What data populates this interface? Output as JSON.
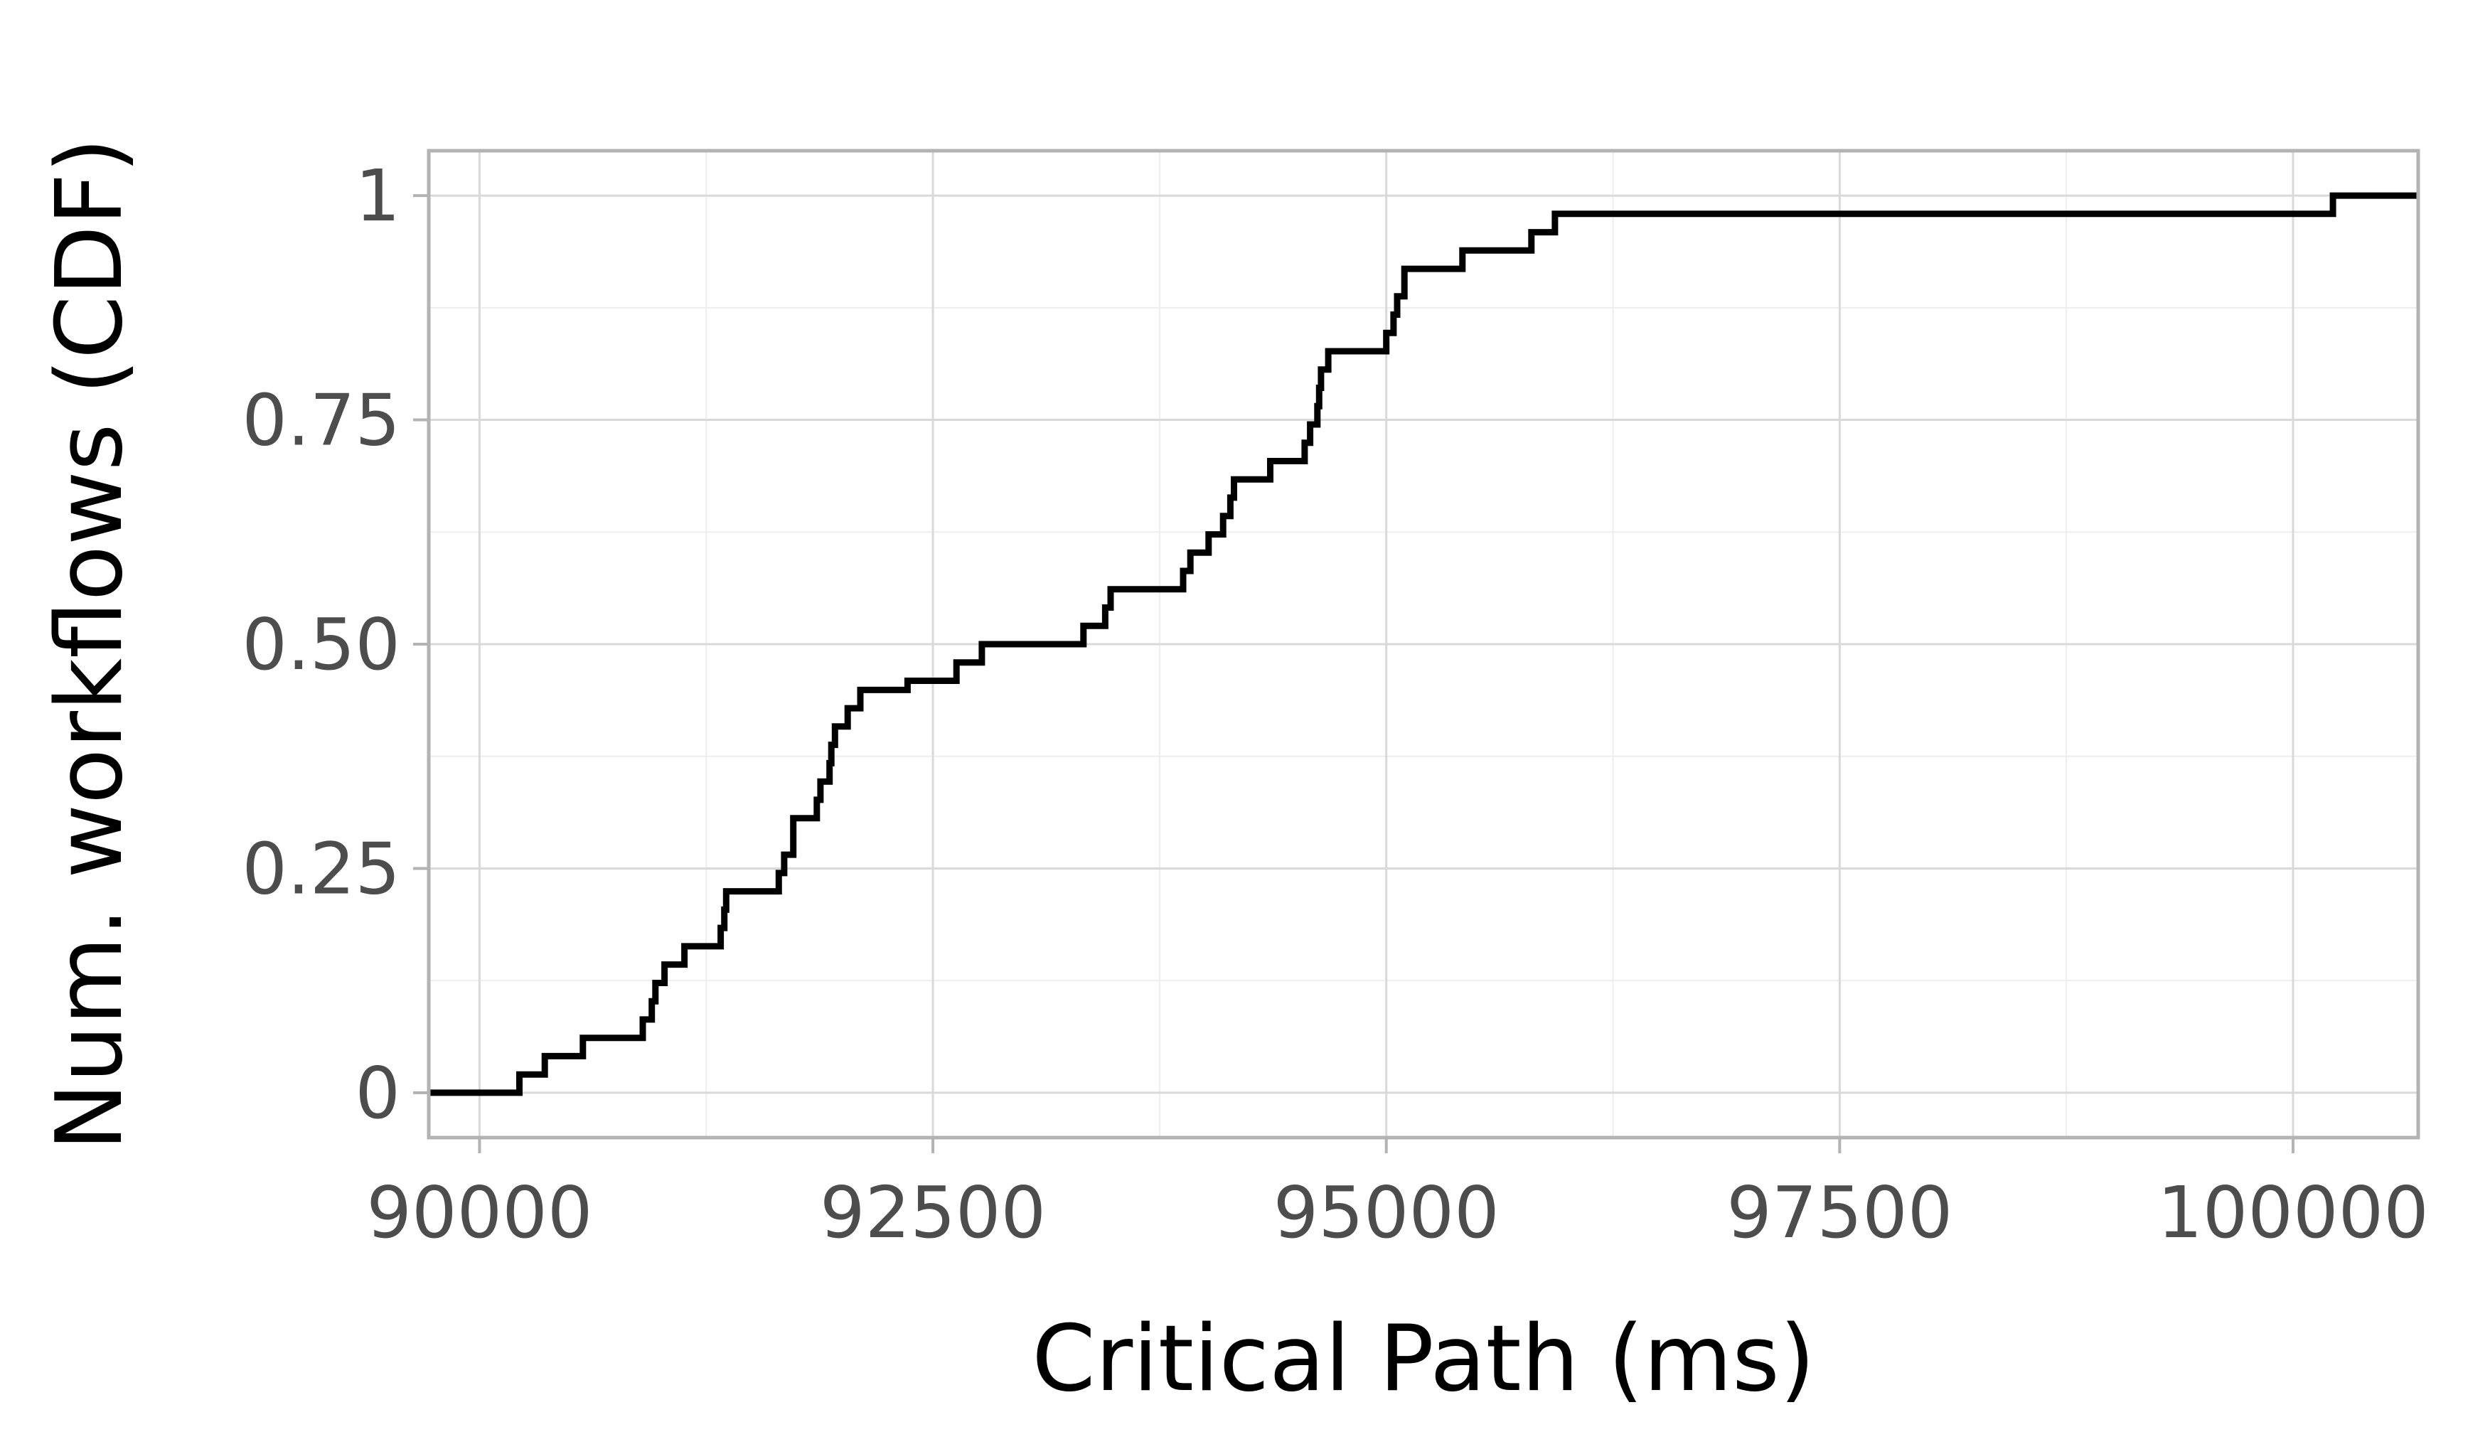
{
  "chart_data": {
    "type": "line",
    "step": true,
    "title": "",
    "xlabel": "Critical Path (ms)",
    "ylabel": "Num. workflows (CDF)",
    "xlim": [
      89720,
      100690
    ],
    "ylim": [
      -0.05,
      1.05
    ],
    "x_ticks": [
      90000,
      92500,
      95000,
      97500,
      100000
    ],
    "x_tick_labels": [
      "90000",
      "92500",
      "95000",
      "97500",
      "100000"
    ],
    "x_minor_ticks": [
      91250,
      93750,
      96250,
      98750
    ],
    "y_ticks": [
      0,
      0.25,
      0.5,
      0.75,
      1
    ],
    "y_tick_labels": [
      "0",
      "0.25",
      "0.50",
      "0.75",
      "1"
    ],
    "y_minor_ticks": [
      0.125,
      0.375,
      0.625,
      0.875
    ],
    "grid": true,
    "legend": "none",
    "colors": {
      "line": "#000000",
      "grid_major": "#d9d9d9",
      "grid_minor": "#ededed",
      "panel_border": "#b3b3b3",
      "tick_text": "#4d4d4d"
    },
    "series": [
      {
        "points": [
          [
            89720,
            0
          ],
          [
            90220,
            0.0204
          ],
          [
            90360,
            0.0408
          ],
          [
            90570,
            0.0612
          ],
          [
            90900,
            0.0816
          ],
          [
            90950,
            0.102
          ],
          [
            90970,
            0.1224
          ],
          [
            91020,
            0.1429
          ],
          [
            91130,
            0.1633
          ],
          [
            91330,
            0.1837
          ],
          [
            91350,
            0.2041
          ],
          [
            91360,
            0.2245
          ],
          [
            91650,
            0.2449
          ],
          [
            91680,
            0.2653
          ],
          [
            91730,
            0.2857
          ],
          [
            91730,
            0.3061
          ],
          [
            91860,
            0.3265
          ],
          [
            91880,
            0.3469
          ],
          [
            91930,
            0.3673
          ],
          [
            91940,
            0.3878
          ],
          [
            91960,
            0.4082
          ],
          [
            92030,
            0.4286
          ],
          [
            92100,
            0.449
          ],
          [
            92360,
            0.4592
          ],
          [
            92630,
            0.4796
          ],
          [
            92770,
            0.5
          ],
          [
            93330,
            0.5204
          ],
          [
            93450,
            0.5408
          ],
          [
            93480,
            0.5612
          ],
          [
            93880,
            0.5816
          ],
          [
            93920,
            0.602
          ],
          [
            94020,
            0.6224
          ],
          [
            94100,
            0.6429
          ],
          [
            94140,
            0.6633
          ],
          [
            94160,
            0.6837
          ],
          [
            94360,
            0.7041
          ],
          [
            94550,
            0.7245
          ],
          [
            94580,
            0.7449
          ],
          [
            94620,
            0.7653
          ],
          [
            94630,
            0.7857
          ],
          [
            94640,
            0.8061
          ],
          [
            94680,
            0.8265
          ],
          [
            95000,
            0.8469
          ],
          [
            95040,
            0.8673
          ],
          [
            95060,
            0.8878
          ],
          [
            95100,
            0.9082
          ],
          [
            95100,
            0.9184
          ],
          [
            95420,
            0.9388
          ],
          [
            95800,
            0.9592
          ],
          [
            95930,
            0.9796
          ],
          [
            100220,
            1.0
          ],
          [
            100690,
            1.0
          ]
        ]
      }
    ]
  }
}
